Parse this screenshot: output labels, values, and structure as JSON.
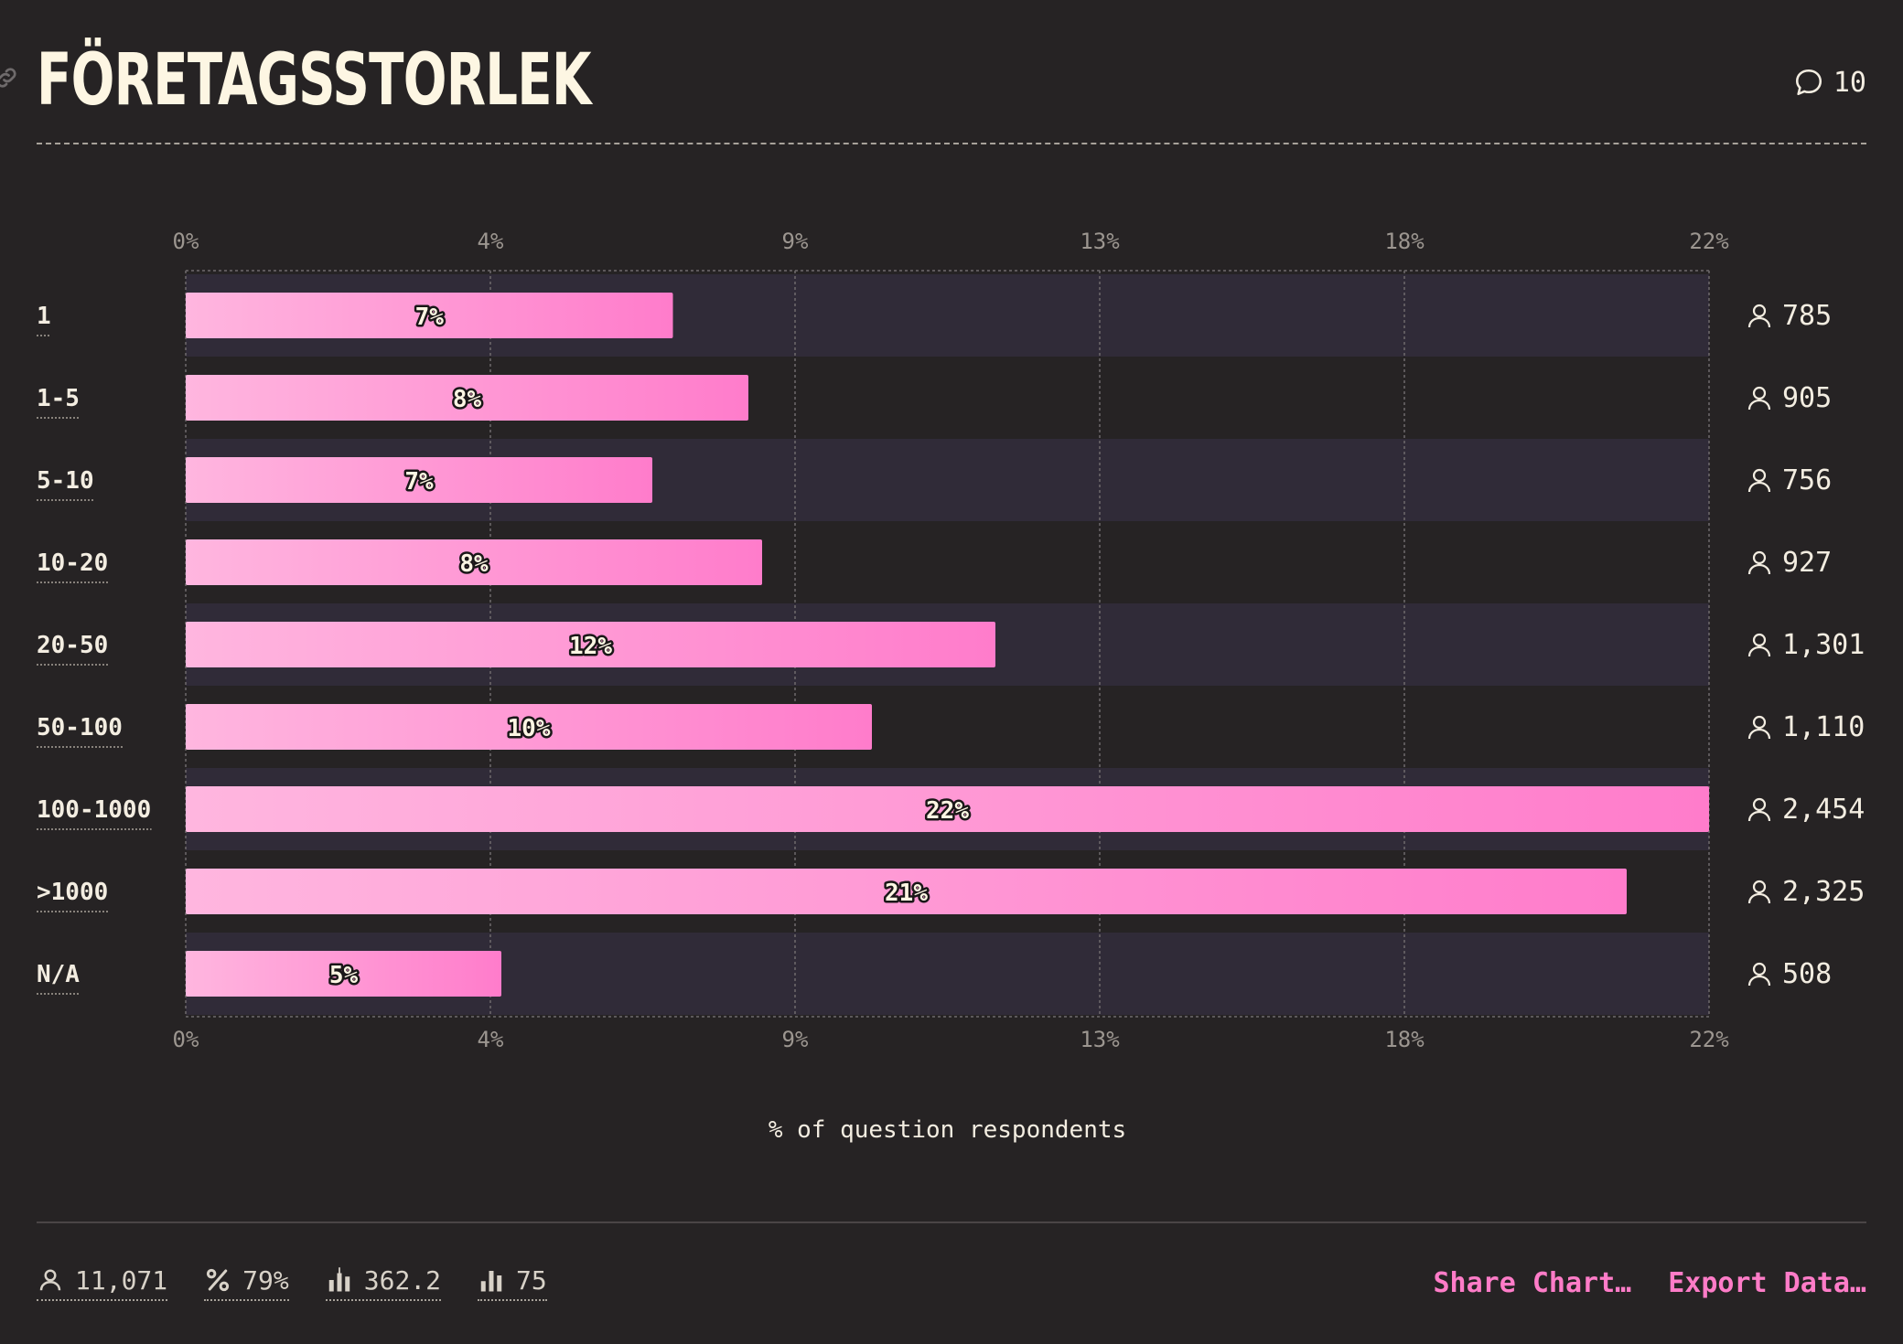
{
  "title": "FÖRETAGSSTORLEK",
  "comments": {
    "count": "10"
  },
  "chart_data": {
    "type": "bar",
    "orientation": "horizontal",
    "categories": [
      "1",
      "1-5",
      "5-10",
      "10-20",
      "20-50",
      "50-100",
      "100-1000",
      ">1000",
      "N/A"
    ],
    "values": [
      7.1,
      8.2,
      6.8,
      8.4,
      11.8,
      10.0,
      22.2,
      21.0,
      4.6
    ],
    "value_labels": [
      "7%",
      "8%",
      "7%",
      "8%",
      "12%",
      "10%",
      "22%",
      "21%",
      "5%"
    ],
    "counts": [
      "785",
      "905",
      "756",
      "927",
      "1,301",
      "1,110",
      "2,454",
      "2,325",
      "508"
    ],
    "xlim": [
      0,
      22.2
    ],
    "ticks": [
      0,
      4.44,
      8.88,
      13.32,
      17.76,
      22.2
    ],
    "tick_labels": [
      "0%",
      "4%",
      "9%",
      "13%",
      "18%",
      "22%"
    ],
    "xlabel": "% of question respondents",
    "grid": true
  },
  "stats": {
    "respondents": "11,071",
    "percent": "79%",
    "average": "362.2",
    "median": "75"
  },
  "actions": {
    "share": "Share Chart…",
    "export": "Export Data…"
  },
  "colors": {
    "background": "#262324",
    "row_stripe": "#302b38",
    "bar_start": "#ffb6df",
    "bar_end": "#ff7ccb",
    "accent": "#ff7cc8"
  }
}
